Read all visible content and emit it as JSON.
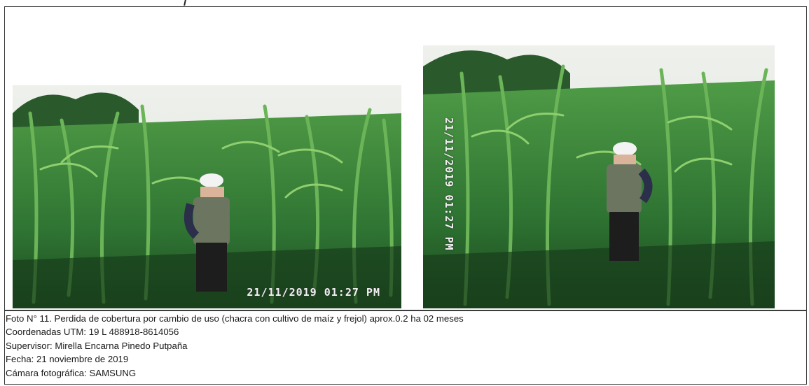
{
  "photos": {
    "left": {
      "timestamp": "21/11/2019 01:27 PM"
    },
    "right": {
      "timestamp": "21/11/2019 01:27 PM"
    }
  },
  "caption": {
    "line1": "Foto N° 11. Perdida de cobertura por cambio de uso (chacra con cultivo de maíz y frejol) aprox.0.2 ha 02 meses",
    "line2": "Coordenadas UTM: 19 L 488918-8614056",
    "line3": "Supervisor: Mirella Encarna Pinedo Putpaña",
    "line4": "Fecha:  21 noviembre de 2019",
    "line5": "Cámara fotográfica: SAMSUNG"
  },
  "colors": {
    "foliage_dark": "#1f4d24",
    "foliage_mid": "#3f8a3b",
    "foliage_light": "#6fb25a",
    "sky": "#e9ece8"
  }
}
